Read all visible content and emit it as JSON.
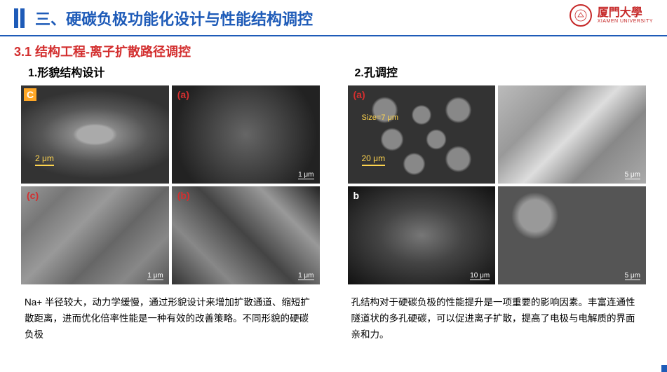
{
  "header": {
    "title": "三、硬碳负极功能化设计与性能结构调控",
    "logo_cn": "厦門大學",
    "logo_en": "XIAMEN UNIVERSITY"
  },
  "section_title": "3.1  结构工程-离子扩散路径调控",
  "left": {
    "title": "1.形貌结构设计",
    "images": [
      {
        "label": "C",
        "label_bg": "#ffa726",
        "label_color": "#fff",
        "scale": "2 μm",
        "scale_color": "#ffd54f",
        "bg": "radial-gradient(ellipse 60% 45% at 50% 50%, #aaa 20%, #888 25%, #555 60%, #333 100%)"
      },
      {
        "label": "(a)",
        "label_bg": "transparent",
        "label_color": "#d32f2f",
        "scale": "1 μm",
        "scale_color": "#fff",
        "bg": "radial-gradient(circle at 50% 50%, #666 0%, #222 80%)"
      },
      {
        "label": "(c)",
        "label_bg": "transparent",
        "label_color": "#d32f2f",
        "scale": "1 μm",
        "scale_color": "#fff",
        "bg": "linear-gradient(135deg, #999 0%, #777 20%, #999 40%, #666 60%, #888 80%, #555 100%)"
      },
      {
        "label": "(b)",
        "label_bg": "transparent",
        "label_color": "#d32f2f",
        "scale": "1 μm",
        "scale_color": "#fff",
        "bg": "linear-gradient(45deg, #333, #888, #444, #999, #222)"
      }
    ],
    "description": "Na+ 半径较大，动力学缓慢，通过形貌设计来增加扩散通道、缩短扩散距离，进而优化倍率性能是一种有效的改善策略。不同形貌的硬碳负极"
  },
  "right": {
    "title": "2.孔调控",
    "images": [
      {
        "label": "(a)",
        "label_bg": "transparent",
        "label_color": "#d32f2f",
        "scale": "20 μm",
        "scale_color": "#ffd54f",
        "extra_label": "Size=7 μm",
        "bg": "radial-gradient(circle at 25% 25%, #888 8%, transparent 10%), radial-gradient(circle at 50% 30%, #888 8%, transparent 10%), radial-gradient(circle at 75% 25%, #888 8%, transparent 10%), radial-gradient(circle at 30% 55%, #888 8%, transparent 10%), radial-gradient(circle at 60% 55%, #888 8%, transparent 10%), radial-gradient(circle at 45% 80%, #888 8%, transparent 10%), radial-gradient(circle at 75% 75%, #888 8%, transparent 10%), #333"
      },
      {
        "label": "",
        "label_bg": "transparent",
        "label_color": "#fff",
        "scale": "5 μm",
        "scale_color": "#fff",
        "bg": "linear-gradient(135deg, #bbb 0%, #999 30%, #ddd 50%, #888 70%, #aaa 100%)"
      },
      {
        "label": "b",
        "label_bg": "transparent",
        "label_color": "#fff",
        "scale": "10 μm",
        "scale_color": "#fff",
        "bg": "radial-gradient(ellipse at 50% 50%, #777 0%, #444 40%, #111 100%)"
      },
      {
        "label": "",
        "label_bg": "transparent",
        "label_color": "#fff",
        "scale": "5 μm",
        "scale_color": "#fff",
        "bg": "radial-gradient(circle at 25% 30%, #999 12%, #555 18%), radial-gradient(circle at 60% 30%, #999 12%, #555 18%), radial-gradient(circle at 40% 65%, #999 12%, #555 18%), radial-gradient(circle at 75% 70%, #999 12%, #555 18%), #444"
      }
    ],
    "description": "孔结构对于硬碳负极的性能提升是一项重要的影响因素。丰富连通性隧道状的多孔硬碳，可以促进离子扩散，提高了电极与电解质的界面亲和力。"
  },
  "colors": {
    "primary_blue": "#1e5bb8",
    "accent_red": "#d32f2f",
    "text_black": "#000000",
    "logo_red": "#c62828"
  }
}
